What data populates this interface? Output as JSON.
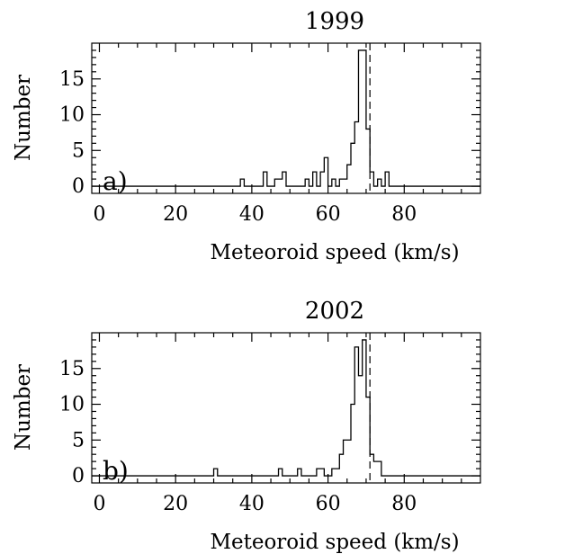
{
  "chart_data": [
    {
      "type": "histogram",
      "title": "1999",
      "panel_label": "a)",
      "xlabel": "Meteoroid speed (km/s)",
      "ylabel": "Number",
      "xlim": [
        -2,
        100
      ],
      "ylim": [
        -1,
        20
      ],
      "xticks": [
        "0",
        "20",
        "40",
        "60",
        "80"
      ],
      "yticks": [
        "0",
        "5",
        "10",
        "15"
      ],
      "reference_line_x": 71,
      "bin_width": 1,
      "bins": [
        {
          "x": 37,
          "count": 1
        },
        {
          "x": 43,
          "count": 2
        },
        {
          "x": 46,
          "count": 1
        },
        {
          "x": 47,
          "count": 1
        },
        {
          "x": 48,
          "count": 2
        },
        {
          "x": 54,
          "count": 1
        },
        {
          "x": 56,
          "count": 2
        },
        {
          "x": 58,
          "count": 2
        },
        {
          "x": 59,
          "count": 4
        },
        {
          "x": 61,
          "count": 1
        },
        {
          "x": 63,
          "count": 1
        },
        {
          "x": 64,
          "count": 1
        },
        {
          "x": 65,
          "count": 3
        },
        {
          "x": 66,
          "count": 6
        },
        {
          "x": 67,
          "count": 9
        },
        {
          "x": 68,
          "count": 19
        },
        {
          "x": 69,
          "count": 19
        },
        {
          "x": 70,
          "count": 8
        },
        {
          "x": 71,
          "count": 2
        },
        {
          "x": 73,
          "count": 1
        },
        {
          "x": 75,
          "count": 2
        }
      ]
    },
    {
      "type": "histogram",
      "title": "2002",
      "panel_label": "b)",
      "xlabel": "Meteoroid speed (km/s)",
      "ylabel": "Number",
      "xlim": [
        -2,
        100
      ],
      "ylim": [
        -1,
        20
      ],
      "xticks": [
        "0",
        "20",
        "40",
        "60",
        "80"
      ],
      "yticks": [
        "0",
        "5",
        "10",
        "15"
      ],
      "reference_line_x": 71,
      "bin_width": 1,
      "bins": [
        {
          "x": 30,
          "count": 1
        },
        {
          "x": 47,
          "count": 1
        },
        {
          "x": 52,
          "count": 1
        },
        {
          "x": 57,
          "count": 1
        },
        {
          "x": 58,
          "count": 1
        },
        {
          "x": 61,
          "count": 1
        },
        {
          "x": 62,
          "count": 1
        },
        {
          "x": 63,
          "count": 3
        },
        {
          "x": 64,
          "count": 5
        },
        {
          "x": 65,
          "count": 5
        },
        {
          "x": 66,
          "count": 10
        },
        {
          "x": 67,
          "count": 18
        },
        {
          "x": 68,
          "count": 14
        },
        {
          "x": 69,
          "count": 19
        },
        {
          "x": 70,
          "count": 11
        },
        {
          "x": 71,
          "count": 3
        },
        {
          "x": 72,
          "count": 2
        },
        {
          "x": 73,
          "count": 2
        }
      ]
    }
  ]
}
